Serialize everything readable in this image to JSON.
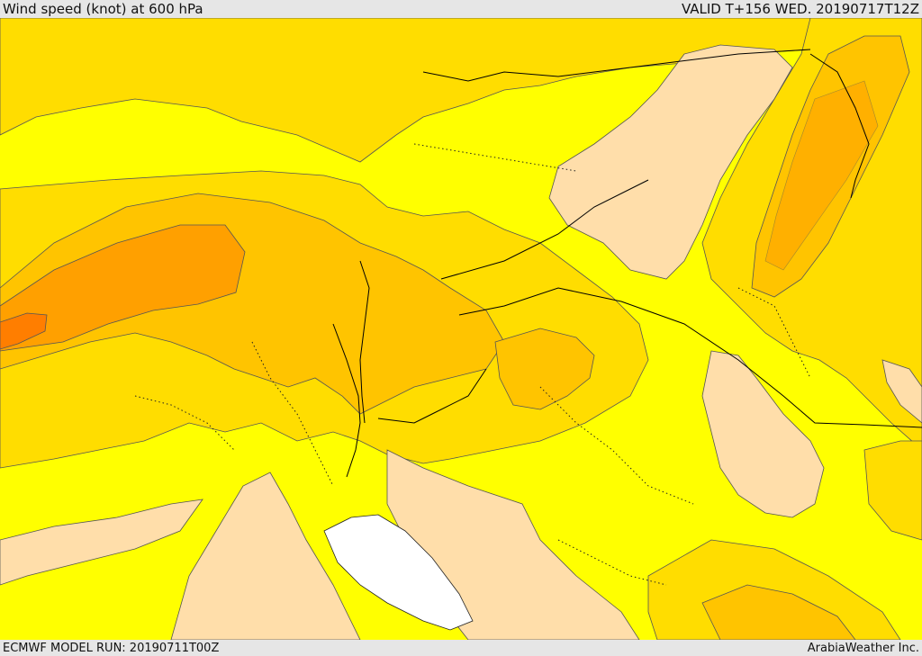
{
  "header": {
    "title": "Wind speed (knot) at 600 hPa",
    "valid": "VALID T+156 WED. 20190717T12Z"
  },
  "footer": {
    "model_run": "ECMWF MODEL RUN: 20190711T00Z",
    "credit": "ArabiaWeather Inc."
  },
  "map": {
    "variable": "wind speed",
    "level": "600 hPa",
    "unit": "knot",
    "colors": {
      "lightest": "#ffdeaa",
      "yellow": "#ffff00",
      "gold": "#ffdd00",
      "amber": "#ffc400",
      "orange": "#ffa000",
      "dark_orange": "#ff7e00",
      "sea_white": "#ffffff",
      "contour": "#555555",
      "border": "#000000"
    }
  }
}
